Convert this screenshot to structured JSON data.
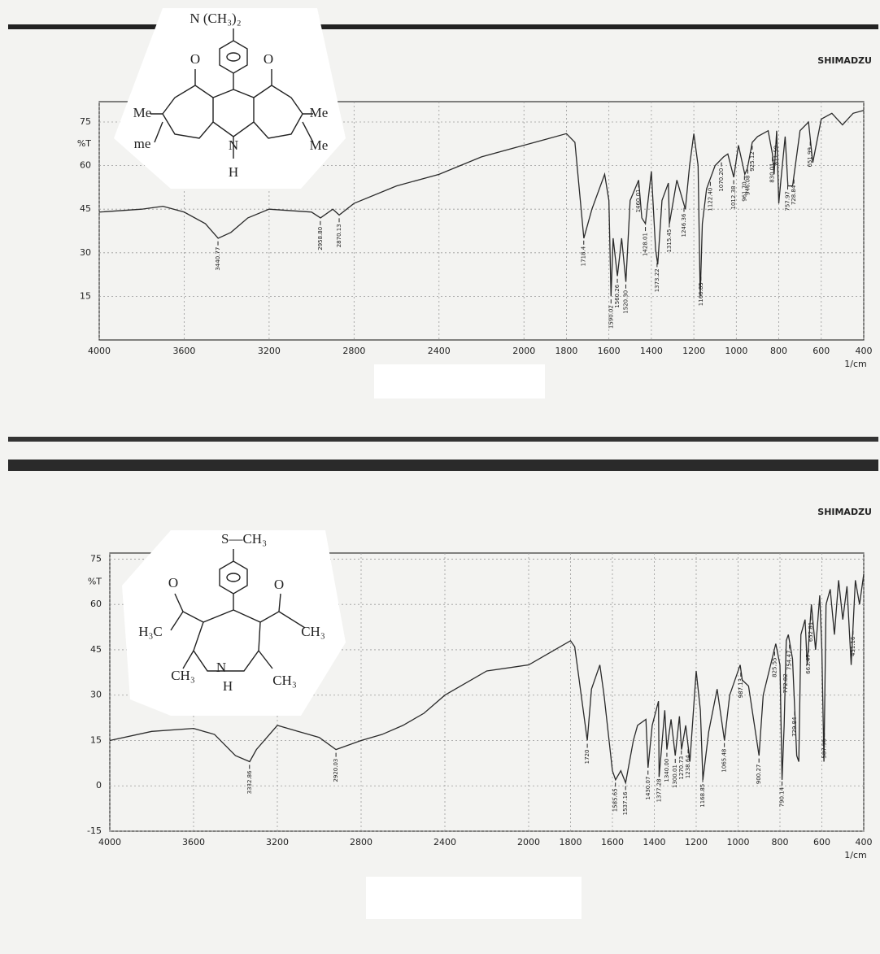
{
  "chart_data": [
    {
      "type": "line",
      "brand": "SHIMADZU",
      "ylabel": "%T",
      "xlabel": "1/cm",
      "xlim": [
        4000,
        400
      ],
      "xticks": [
        4000,
        3600,
        3200,
        2800,
        2400,
        2000,
        1800,
        1600,
        1400,
        1200,
        1000,
        800,
        600,
        400
      ],
      "ylim": [
        0,
        82
      ],
      "yticks": [
        15,
        30,
        45,
        60,
        75
      ],
      "grid": true,
      "series": [
        {
          "color": "#2a2a2a",
          "x": [
            4000,
            3800,
            3700,
            3600,
            3500,
            3440,
            3380,
            3300,
            3200,
            3000,
            2958,
            2900,
            2870,
            2800,
            2600,
            2400,
            2200,
            2000,
            1900,
            1800,
            1760,
            1718,
            1680,
            1620,
            1600,
            1590,
            1580,
            1560,
            1540,
            1520,
            1500,
            1460,
            1445,
            1428,
            1400,
            1380,
            1370,
            1350,
            1320,
            1315,
            1280,
            1240,
            1220,
            1200,
            1180,
            1170,
            1160,
            1140,
            1100,
            1060,
            1040,
            1012,
            990,
            960,
            948,
            925,
            900,
            850,
            830,
            822,
            810,
            800,
            790,
            770,
            757,
            735,
            700,
            660,
            640,
            600,
            550,
            500,
            450,
            400
          ],
          "values": [
            44,
            45,
            46,
            44,
            40,
            35,
            37,
            42,
            45,
            44,
            42,
            45,
            43,
            47,
            53,
            57,
            63,
            67,
            69,
            71,
            68,
            35,
            45,
            57,
            48,
            15,
            35,
            22,
            35,
            20,
            48,
            55,
            42,
            40,
            58,
            31,
            26,
            48,
            54,
            40,
            55,
            45,
            60,
            71,
            60,
            15,
            40,
            52,
            60,
            63,
            64,
            56,
            67,
            57,
            59,
            68,
            70,
            72,
            64,
            57,
            72,
            47,
            55,
            70,
            53,
            53,
            72,
            75,
            61,
            76,
            78,
            74,
            78,
            79
          ]
        }
      ],
      "peaks": {
        "x": [
          3440.77,
          2958.8,
          2870.13,
          1718.4,
          1590.02,
          1560.26,
          1520.3,
          1460.01,
          1428.01,
          1373.22,
          1315.45,
          1246.36,
          1166.85,
          1122.4,
          1070.2,
          1012.38,
          961.7,
          946.08,
          925.12,
          830.01,
          811.59,
          757.97,
          728.84,
          651.99
        ],
        "labels": [
          "3440.77",
          "2958.80",
          "2870.13",
          "1718.4",
          "1590.02",
          "1560.26",
          "1520.30",
          "1460.01",
          "1428.01",
          "1373.22",
          "1315.45",
          "1246.36",
          "1166.85",
          "1122.40",
          "1070.20",
          "1012.38",
          "961.70",
          "946.08",
          "925.12",
          "830.01",
          "811.59",
          "757.97",
          "728.84",
          "651.99"
        ]
      }
    },
    {
      "type": "line",
      "brand": "SHIMADZU",
      "ylabel": "%T",
      "xlabel": "1/cm",
      "xlim": [
        4000,
        400
      ],
      "xticks": [
        4000,
        3600,
        3200,
        2800,
        2400,
        2000,
        1800,
        1600,
        1400,
        1200,
        1000,
        800,
        600,
        400
      ],
      "ylim": [
        -15,
        77
      ],
      "yticks": [
        -15,
        0,
        15,
        30,
        45,
        60,
        75
      ],
      "grid": true,
      "series": [
        {
          "color": "#2a2a2a",
          "x": [
            4000,
            3800,
            3600,
            3500,
            3400,
            3332,
            3300,
            3200,
            3100,
            3000,
            2920,
            2800,
            2700,
            2600,
            2500,
            2400,
            2200,
            2000,
            1900,
            1800,
            1780,
            1720,
            1700,
            1660,
            1640,
            1600,
            1585,
            1560,
            1537,
            1500,
            1480,
            1440,
            1430,
            1410,
            1380,
            1377,
            1350,
            1340,
            1320,
            1300,
            1280,
            1270,
            1250,
            1230,
            1200,
            1180,
            1168,
            1140,
            1100,
            1065,
            1040,
            990,
            980,
            950,
            900,
            880,
            820,
            800,
            790,
            780,
            770,
            760,
            740,
            720,
            710,
            700,
            680,
            670,
            650,
            630,
            610,
            600,
            590,
            580,
            560,
            540,
            520,
            500,
            480,
            460,
            440,
            420,
            400
          ],
          "values": [
            15,
            18,
            19,
            17,
            10,
            8,
            12,
            20,
            18,
            16,
            12,
            15,
            17,
            20,
            24,
            30,
            38,
            40,
            44,
            48,
            46,
            15,
            32,
            40,
            30,
            5,
            2,
            5,
            1,
            15,
            20,
            22,
            6,
            20,
            28,
            3,
            25,
            12,
            22,
            10,
            23,
            12,
            20,
            8,
            38,
            25,
            2,
            18,
            32,
            15,
            30,
            40,
            35,
            33,
            10,
            30,
            47,
            40,
            2,
            20,
            48,
            50,
            42,
            10,
            8,
            50,
            55,
            40,
            60,
            45,
            63,
            45,
            8,
            60,
            65,
            50,
            68,
            55,
            66,
            40,
            68,
            60,
            70
          ]
        }
      ],
      "peaks": {
        "x": [
          3332.86,
          2920.03,
          1720,
          1585.65,
          1537.16,
          1430.07,
          1377.28,
          1340,
          1300.01,
          1270.73,
          1238.64,
          1168.85,
          1065.48,
          987.13,
          900.27,
          825.55,
          790.14,
          772.82,
          754.47,
          729.84,
          663.47,
          652.81,
          587.96,
          451.16
        ],
        "labels": [
          "3332.86",
          "2920.03",
          "1720",
          "1585.65",
          "1537.16",
          "1430.07",
          "1377.28",
          "1340.00",
          "1300.01",
          "1270.73",
          "1238.64",
          "1168.85",
          "1065.48",
          "987.13",
          "900.27",
          "825.55",
          "790.14",
          "772.82",
          "754.47",
          "729.84",
          "663.47",
          "652.81",
          "587.96",
          "451.16"
        ]
      }
    }
  ],
  "structures": [
    {
      "labels": [
        "N (CH₃)₂",
        "O",
        "O",
        "Me",
        "Me",
        "me",
        "Me",
        "N",
        "H"
      ]
    },
    {
      "labels": [
        "S—CH₃",
        "O",
        "O",
        "H₃C",
        "CH₃",
        "N",
        "H",
        "CH₃",
        "CH₃"
      ]
    }
  ]
}
